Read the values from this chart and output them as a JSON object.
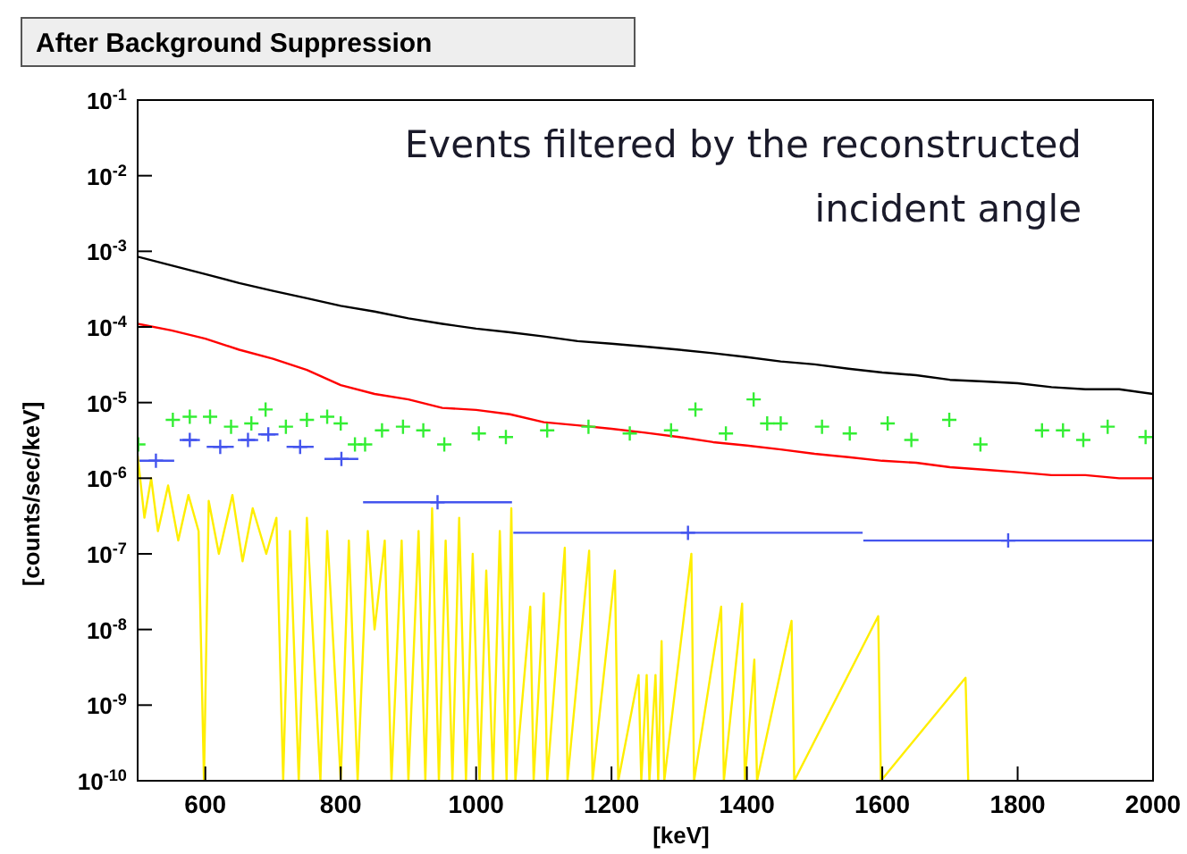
{
  "chart_data": {
    "type": "line",
    "title": "After Background Suppression",
    "xlabel": "[keV]",
    "ylabel": "[counts/sec/keV]",
    "annotations": [
      "Events filtered by the reconstructed incident angle"
    ],
    "log": "y",
    "grid": false,
    "xlim": [
      500,
      2000
    ],
    "xticks": [
      600,
      800,
      1000,
      1200,
      1400,
      1600,
      1800,
      2000
    ],
    "ylim": [
      1e-10,
      0.1
    ],
    "yticks": [
      {
        "value": 1e-10,
        "label": "10$^{-10}$"
      },
      {
        "value": 1e-09,
        "label": "10$^{-9}$"
      },
      {
        "value": 1e-08,
        "label": "10$^{-8}$"
      },
      {
        "value": 1e-07,
        "label": "10$^{-7}$"
      },
      {
        "value": 1e-06,
        "label": "10$^{-6}$"
      },
      {
        "value": 1e-05,
        "label": "10$^{-5}$"
      },
      {
        "value": 0.0001,
        "label": "10$^{-4}$"
      },
      {
        "value": 0.001,
        "label": "10$^{-3}$"
      },
      {
        "value": 0.01,
        "label": "10$^{-2}$"
      },
      {
        "value": 0.1,
        "label": "10$^{-1}$"
      }
    ],
    "series": [
      {
        "color": "#000000",
        "x": [
          500,
          550,
          600,
          650,
          700,
          750,
          800,
          850,
          900,
          950,
          1000,
          1050,
          1100,
          1150,
          1200,
          1250,
          1300,
          1350,
          1400,
          1450,
          1500,
          1550,
          1600,
          1650,
          1700,
          1750,
          1800,
          1850,
          1900,
          1950,
          2000
        ],
        "values": [
          0.00085,
          0.00065,
          0.0005,
          0.00038,
          0.0003,
          0.00024,
          0.00019,
          0.00016,
          0.00013,
          0.00011,
          9.5e-05,
          8.5e-05,
          7.5e-05,
          6.5e-05,
          6e-05,
          5.5e-05,
          5e-05,
          4.5e-05,
          4e-05,
          3.5e-05,
          3.2e-05,
          2.8e-05,
          2.5e-05,
          2.3e-05,
          2e-05,
          1.9e-05,
          1.8e-05,
          1.6e-05,
          1.5e-05,
          1.5e-05,
          1.3e-05
        ]
      },
      {
        "color": "#ff0000",
        "x": [
          500,
          550,
          600,
          650,
          700,
          750,
          800,
          850,
          900,
          950,
          1000,
          1050,
          1100,
          1150,
          1200,
          1250,
          1300,
          1350,
          1400,
          1450,
          1500,
          1550,
          1600,
          1650,
          1700,
          1750,
          1800,
          1850,
          1900,
          1950,
          2000
        ],
        "values": [
          0.00011,
          9e-05,
          7e-05,
          5e-05,
          3.8e-05,
          2.7e-05,
          1.7e-05,
          1.3e-05,
          1.1e-05,
          8.5e-06,
          8e-06,
          7e-06,
          5.5e-06,
          5e-06,
          4.5e-06,
          4e-06,
          3.5e-06,
          3e-06,
          2.7e-06,
          2.4e-06,
          2.1e-06,
          1.9e-06,
          1.7e-06,
          1.6e-06,
          1.4e-06,
          1.3e-06,
          1.2e-06,
          1.1e-06,
          1.1e-06,
          1e-06,
          1e-06
        ]
      },
      {
        "type": "scatter",
        "color": "#33ee33",
        "marker": "cross",
        "x": [
          501,
          552,
          577,
          607,
          638,
          668,
          689,
          719,
          750,
          780,
          800,
          821,
          836,
          861,
          892,
          922,
          953,
          1004,
          1044,
          1105,
          1166,
          1227,
          1288,
          1324,
          1369,
          1410,
          1430,
          1450,
          1511,
          1552,
          1608,
          1643,
          1699,
          1745,
          1836,
          1867,
          1897,
          1933,
          1989
        ],
        "values": [
          2.8e-06,
          5.9e-06,
          6.5e-06,
          6.5e-06,
          4.8e-06,
          5.3e-06,
          8.1e-06,
          4.8e-06,
          5.9e-06,
          6.5e-06,
          5.3e-06,
          2.8e-06,
          2.8e-06,
          4.3e-06,
          4.8e-06,
          4.3e-06,
          2.8e-06,
          3.9e-06,
          3.5e-06,
          4.3e-06,
          4.8e-06,
          3.9e-06,
          4.3e-06,
          8.1e-06,
          3.9e-06,
          1.1e-05,
          5.3e-06,
          5.3e-06,
          4.8e-06,
          3.9e-06,
          5.3e-06,
          3.2e-06,
          5.9e-06,
          2.8e-06,
          4.3e-06,
          4.3e-06,
          3.2e-06,
          4.8e-06,
          3.5e-06
        ]
      },
      {
        "type": "scatter",
        "color": "#4455ee",
        "marker": "cross",
        "x": [
          527,
          577,
          622,
          663,
          693,
          740,
          801,
          943,
          1313,
          1786
        ],
        "values": [
          1.7e-06,
          3.2e-06,
          2.6e-06,
          3.2e-06,
          3.8e-06,
          2.6e-06,
          1.8e-06,
          4.8e-07,
          1.9e-07,
          1.5e-07
        ],
        "xerrors": [
          27,
          15,
          20,
          15,
          15,
          20,
          25,
          110,
          258,
          214
        ]
      },
      {
        "color": "#ffee00",
        "x": [
          500,
          510,
          520,
          530,
          545,
          560,
          575,
          590,
          598,
          605,
          620,
          640,
          655,
          670,
          690,
          705,
          715,
          725,
          738,
          750,
          770,
          780,
          800,
          812,
          825,
          840,
          850,
          865,
          875,
          890,
          900,
          915,
          925,
          935,
          945,
          955,
          965,
          975,
          985,
          995,
          1005,
          1015,
          1025,
          1035,
          1045,
          1052,
          1058,
          1080,
          1085,
          1100,
          1105,
          1131,
          1135,
          1167,
          1172,
          1205,
          1210,
          1240,
          1244,
          1252,
          1256,
          1265,
          1269,
          1274,
          1278,
          1318,
          1322,
          1362,
          1366,
          1393,
          1397,
          1411,
          1415,
          1466,
          1470,
          1594,
          1598,
          1723,
          1727
        ],
        "values": [
          2e-06,
          3e-07,
          1e-06,
          2e-07,
          8e-07,
          1.5e-07,
          6e-07,
          2e-07,
          1e-10,
          5e-07,
          1e-07,
          6e-07,
          8e-08,
          4e-07,
          1e-07,
          3e-07,
          1e-10,
          2e-07,
          1e-10,
          3e-07,
          1e-10,
          2e-07,
          1e-10,
          1.5e-07,
          1e-10,
          2e-07,
          1e-08,
          1.5e-07,
          1e-10,
          1.5e-07,
          1e-10,
          2e-07,
          1e-10,
          4e-07,
          1e-10,
          1.5e-07,
          1e-10,
          3e-07,
          1e-10,
          1e-07,
          1e-10,
          6e-08,
          1e-10,
          2e-07,
          1e-10,
          4e-07,
          1e-10,
          2e-08,
          1e-10,
          3e-08,
          1e-10,
          1.2e-07,
          1e-10,
          1.1e-07,
          1e-10,
          6e-08,
          1e-10,
          2.5e-09,
          1e-10,
          2.5e-09,
          1e-10,
          2.5e-09,
          1e-10,
          7e-09,
          1e-10,
          1e-07,
          1e-10,
          2e-08,
          1e-10,
          2.2e-08,
          1e-10,
          4e-09,
          1e-10,
          1.3e-08,
          1e-10,
          1.5e-08,
          1e-10,
          2.3e-09,
          1e-10
        ]
      }
    ]
  }
}
